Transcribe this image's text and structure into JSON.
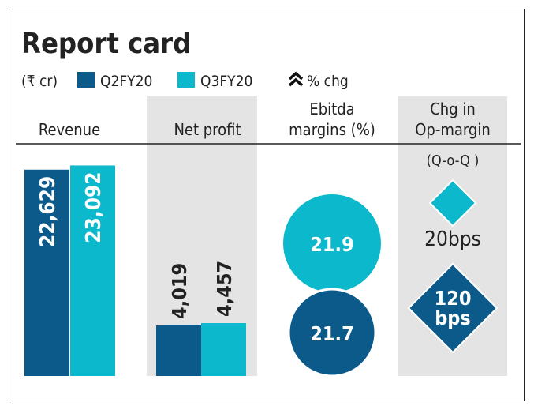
{
  "title": "Report card",
  "legend": {
    "unit": "(₹ cr)",
    "items": [
      {
        "label": "Q2FY20",
        "color": "#0b5a8a"
      },
      {
        "label": "Q3FY20",
        "color": "#0bb8cc"
      }
    ],
    "change_icon": "double-chevron-up-icon",
    "change_label": "% chg"
  },
  "chart_data": [
    {
      "type": "bar",
      "title": "Revenue",
      "categories": [
        "Q2FY20",
        "Q3FY20"
      ],
      "values": [
        22629,
        23092
      ],
      "labels": [
        "22,629",
        "23,092"
      ]
    },
    {
      "type": "bar",
      "title": "Net profit",
      "categories": [
        "Q2FY20",
        "Q3FY20"
      ],
      "values": [
        4019,
        4457
      ],
      "labels": [
        "4,019",
        "4,457"
      ]
    },
    {
      "type": "bubble",
      "title_lines": [
        "Ebitda",
        "margins (%)"
      ],
      "categories": [
        "Q3FY20",
        "Q2FY20"
      ],
      "values": [
        21.9,
        21.7
      ],
      "labels": [
        "21.9",
        "21.7"
      ]
    },
    {
      "type": "diamond",
      "title_lines": [
        "Chg in",
        "Op-margin"
      ],
      "subtitle": "(Q-o-Q )",
      "categories": [
        "Q3FY20",
        "Q2FY20"
      ],
      "values_bps": [
        20,
        120
      ],
      "labels": [
        [
          "20bps"
        ],
        [
          "120",
          "bps"
        ]
      ]
    }
  ]
}
